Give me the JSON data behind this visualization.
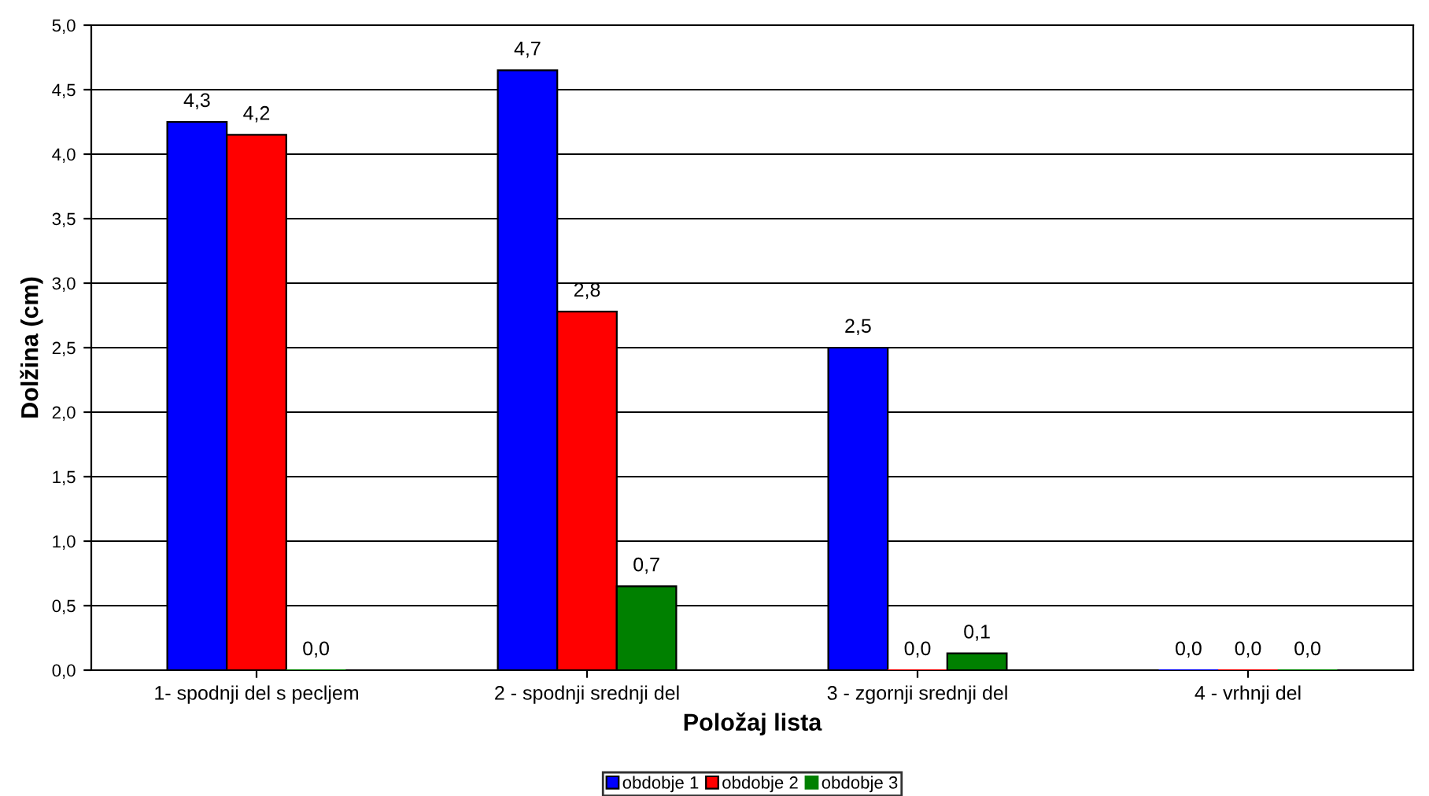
{
  "chart_data": {
    "type": "bar",
    "xlabel": "Položaj lista",
    "ylabel": "Dolžina (cm)",
    "categories": [
      "1- spodnji del s pecljem",
      "2 - spodnji srednji del",
      "3 - zgornji srednji del",
      "4 - vrhnji del"
    ],
    "series": [
      {
        "name": "obdobje 1",
        "color": "#0000ff",
        "values": [
          4.25,
          4.65,
          2.5,
          0
        ],
        "value_labels": [
          "4,3",
          "4,7",
          "2,5",
          "0,0"
        ]
      },
      {
        "name": "obdobje 2",
        "color": "#ff0000",
        "values": [
          4.15,
          2.78,
          0,
          0
        ],
        "value_labels": [
          "4,2",
          "2,8",
          "0,0",
          "0,0"
        ]
      },
      {
        "name": "obdobje 3",
        "color": "#008000",
        "values": [
          0,
          0.65,
          0.13,
          0
        ],
        "value_labels": [
          "0,0",
          "0,7",
          "0,1",
          "0,0"
        ]
      }
    ],
    "ylim": [
      0,
      5
    ],
    "yticks": [
      {
        "value": 0,
        "label": "0,0"
      },
      {
        "value": 0.5,
        "label": "0,5"
      },
      {
        "value": 1,
        "label": "1,0"
      },
      {
        "value": 1.5,
        "label": "1,5"
      },
      {
        "value": 2,
        "label": "2,0"
      },
      {
        "value": 2.5,
        "label": "2,5"
      },
      {
        "value": 3,
        "label": "3,0"
      },
      {
        "value": 3.5,
        "label": "3,5"
      },
      {
        "value": 4,
        "label": "4,0"
      },
      {
        "value": 4.5,
        "label": "4,5"
      },
      {
        "value": 5,
        "label": "5,0"
      }
    ],
    "grid": "y",
    "legend": "bottom"
  }
}
